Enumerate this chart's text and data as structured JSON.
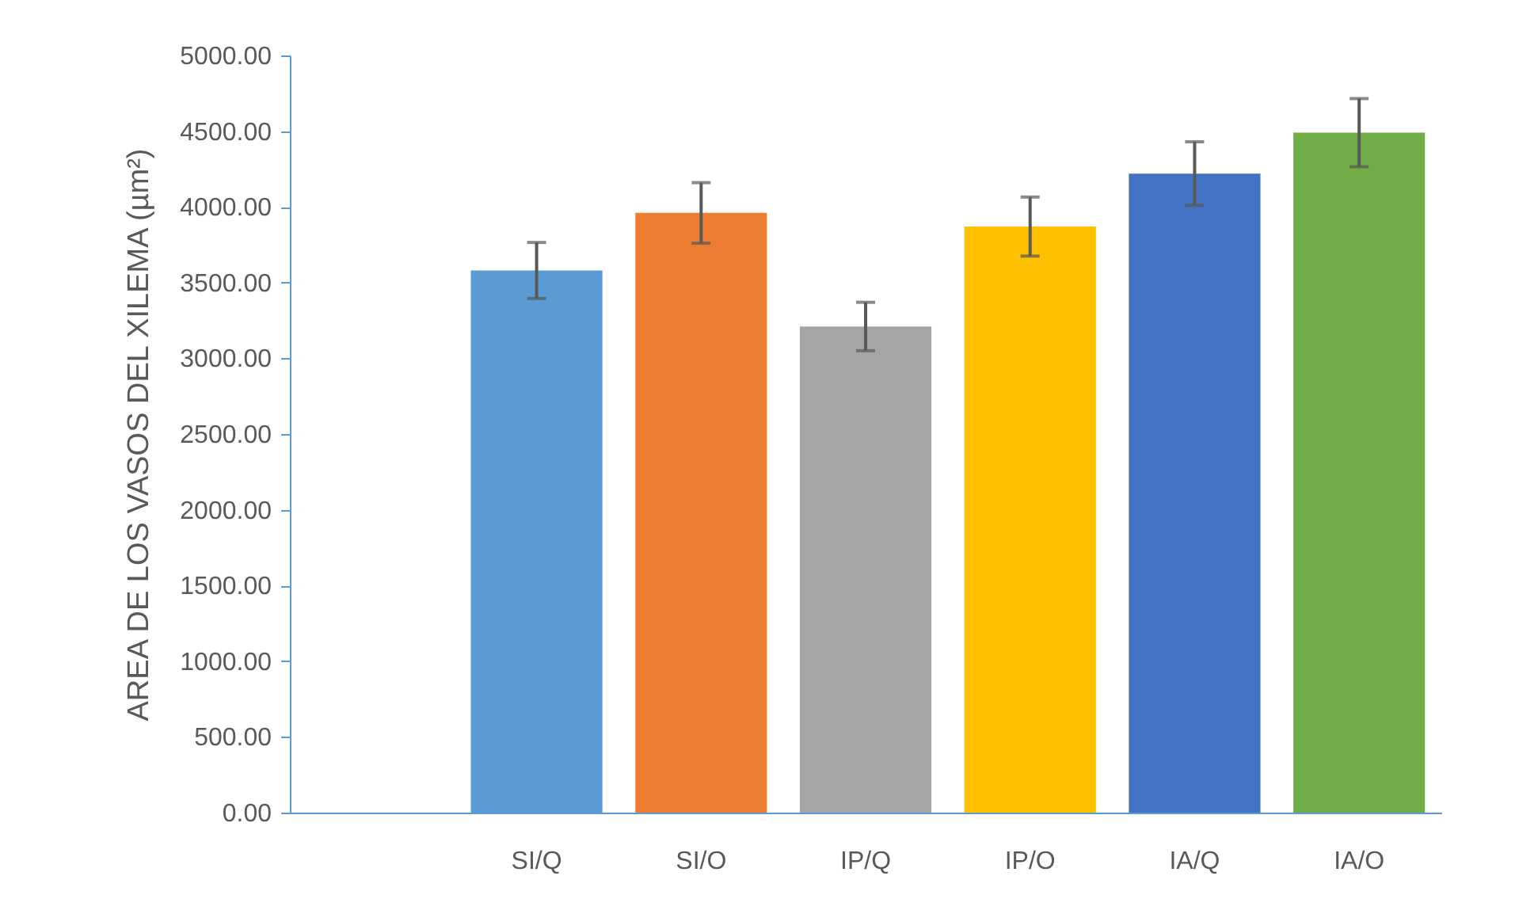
{
  "chart_data": {
    "type": "bar",
    "ylabel": "AREA DE LOS VASOS DEL XILEMA (µm²)",
    "categories": [
      null,
      "SI/Q",
      "SI/O",
      "IP/Q",
      "IP/O",
      "IA/Q",
      "IA/O"
    ],
    "values": [
      null,
      3580,
      3960,
      3210,
      3870,
      4220,
      4490
    ],
    "errors": [
      null,
      185,
      200,
      160,
      195,
      210,
      225
    ],
    "colors": [
      "#5b9bd5",
      "#5b9bd5",
      "#ed7d31",
      "#a5a5a5",
      "#ffc000",
      "#4472c4",
      "#70ad47"
    ],
    "ylim": [
      0,
      5000
    ],
    "yticks": [
      {
        "value": 0,
        "label": "0.00"
      },
      {
        "value": 500,
        "label": "500.00"
      },
      {
        "value": 1000,
        "label": "1000.00"
      },
      {
        "value": 1500,
        "label": "1500.00"
      },
      {
        "value": 2000,
        "label": "2000.00"
      },
      {
        "value": 2500,
        "label": "2500.00"
      },
      {
        "value": 3000,
        "label": "3000.00"
      },
      {
        "value": 3500,
        "label": "3500.00"
      },
      {
        "value": 4000,
        "label": "4000.00"
      },
      {
        "value": 4500,
        "label": "4500.00"
      },
      {
        "value": 5000,
        "label": "5000.00"
      }
    ],
    "grid": false
  }
}
